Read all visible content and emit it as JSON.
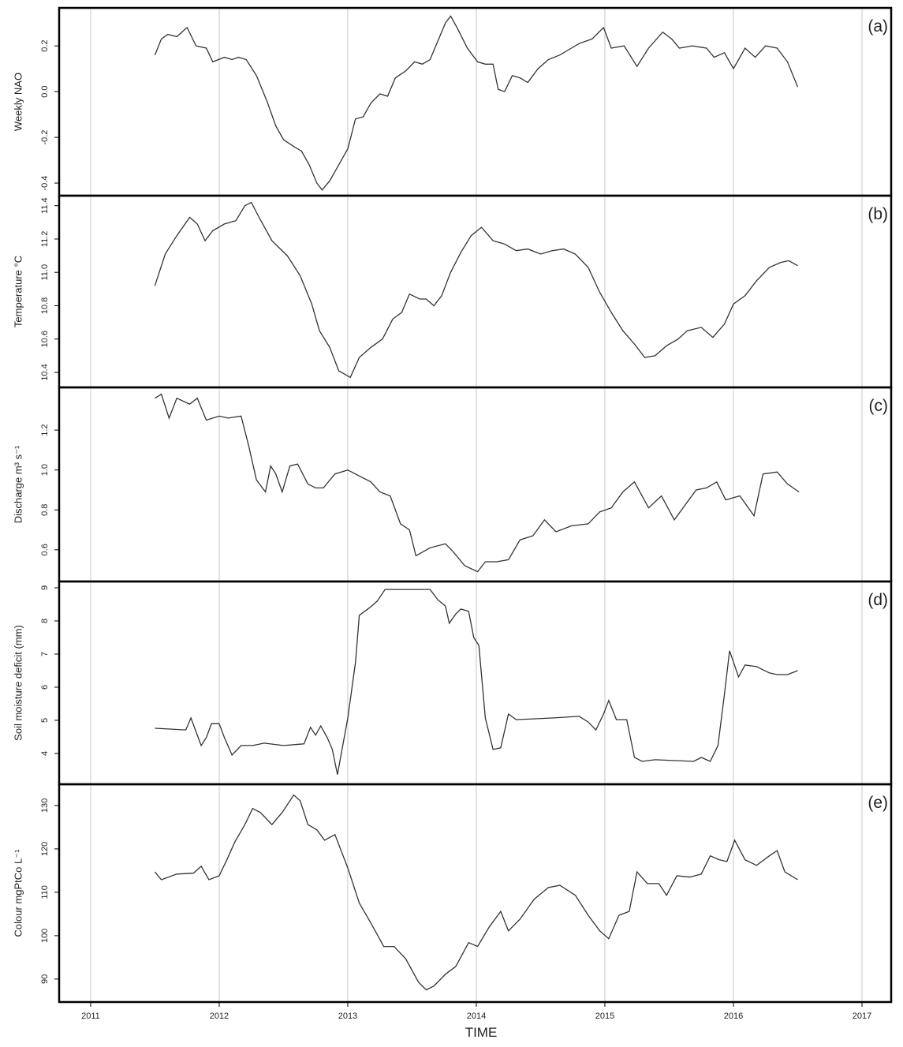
{
  "chart_data": [
    {
      "type": "line",
      "ylabel": "Weekly NAO",
      "annotation": "(a)",
      "color": "#333333",
      "grid": "x",
      "x": [
        2011.5,
        2011.55,
        2011.6,
        2011.67,
        2011.75,
        2011.82,
        2011.9,
        2011.95,
        2012.04,
        2012.1,
        2012.15,
        2012.21,
        2012.29,
        2012.37,
        2012.44,
        2012.5,
        2012.58,
        2012.64,
        2012.7,
        2012.76,
        2012.8,
        2012.86,
        2012.92,
        2013.0,
        2013.06,
        2013.12,
        2013.18,
        2013.25,
        2013.31,
        2013.37,
        2013.45,
        2013.52,
        2013.58,
        2013.64,
        2013.7,
        2013.76,
        2013.8,
        2013.85,
        2013.93,
        2014.01,
        2014.07,
        2014.13,
        2014.17,
        2014.22,
        2014.28,
        2014.34,
        2014.4,
        2014.48,
        2014.56,
        2014.65,
        2014.74,
        2014.8,
        2014.9,
        2014.99,
        2015.05,
        2015.15,
        2015.25,
        2015.34,
        2015.45,
        2015.52,
        2015.58,
        2015.68,
        2015.79,
        2015.85,
        2015.93,
        2016.0,
        2016.09,
        2016.17,
        2016.25,
        2016.34,
        2016.42,
        2016.5
      ],
      "values": [
        0.16,
        0.23,
        0.25,
        0.24,
        0.28,
        0.2,
        0.19,
        0.13,
        0.15,
        0.14,
        0.15,
        0.14,
        0.07,
        -0.04,
        -0.15,
        -0.21,
        -0.24,
        -0.26,
        -0.32,
        -0.4,
        -0.43,
        -0.39,
        -0.33,
        -0.25,
        -0.12,
        -0.11,
        -0.05,
        -0.01,
        -0.02,
        0.06,
        0.09,
        0.13,
        0.12,
        0.14,
        0.22,
        0.3,
        0.33,
        0.28,
        0.19,
        0.13,
        0.12,
        0.12,
        0.01,
        0.0,
        0.07,
        0.06,
        0.04,
        0.1,
        0.14,
        0.16,
        0.19,
        0.21,
        0.23,
        0.28,
        0.19,
        0.2,
        0.11,
        0.19,
        0.26,
        0.23,
        0.19,
        0.2,
        0.19,
        0.15,
        0.17,
        0.1,
        0.19,
        0.15,
        0.2,
        0.19,
        0.13,
        0.02
      ],
      "ylim": [
        -0.455,
        0.366
      ],
      "yticks": [
        -0.4,
        -0.2,
        {
          "value": 0,
          "label": "0.0"
        },
        0.2
      ]
    },
    {
      "type": "line",
      "ylabel": "Temperature °C",
      "annotation": "(b)",
      "color": "#333333",
      "grid": "x",
      "x": [
        2011.5,
        2011.58,
        2011.67,
        2011.77,
        2011.83,
        2011.89,
        2011.95,
        2012.04,
        2012.13,
        2012.2,
        2012.25,
        2012.31,
        2012.41,
        2012.53,
        2012.63,
        2012.72,
        2012.78,
        2012.86,
        2012.93,
        2013.02,
        2013.09,
        2013.18,
        2013.27,
        2013.35,
        2013.42,
        2013.48,
        2013.56,
        2013.61,
        2013.67,
        2013.73,
        2013.8,
        2013.88,
        2013.96,
        2014.04,
        2014.13,
        2014.22,
        2014.31,
        2014.4,
        2014.5,
        2014.59,
        2014.68,
        2014.77,
        2014.87,
        2014.96,
        2015.05,
        2015.14,
        2015.23,
        2015.31,
        2015.39,
        2015.48,
        2015.57,
        2015.64,
        2015.75,
        2015.84,
        2015.93,
        2016.0,
        2016.09,
        2016.18,
        2016.28,
        2016.37,
        2016.43,
        2016.5
      ],
      "values": [
        10.92,
        11.11,
        11.22,
        11.33,
        11.29,
        11.19,
        11.25,
        11.29,
        11.31,
        11.4,
        11.42,
        11.33,
        11.19,
        11.1,
        10.98,
        10.81,
        10.65,
        10.55,
        10.41,
        10.37,
        10.49,
        10.55,
        10.6,
        10.72,
        10.76,
        10.87,
        10.84,
        10.84,
        10.8,
        10.86,
        11.0,
        11.12,
        11.22,
        11.27,
        11.19,
        11.17,
        11.13,
        11.14,
        11.11,
        11.13,
        11.14,
        11.11,
        11.03,
        10.88,
        10.76,
        10.65,
        10.57,
        10.49,
        10.5,
        10.56,
        10.6,
        10.65,
        10.67,
        10.61,
        10.69,
        10.81,
        10.86,
        10.95,
        11.03,
        11.06,
        11.07,
        11.04
      ],
      "ylim": [
        10.31,
        11.46
      ],
      "yticks": [
        10.4,
        10.6,
        10.8,
        {
          "value": 11,
          "label": "11.0"
        },
        11.2,
        11.4
      ]
    },
    {
      "type": "line",
      "ylabel": "Discharge m³ s⁻¹",
      "annotation": "(c)",
      "color": "#333333",
      "grid": "x",
      "x": [
        2011.5,
        2011.55,
        2011.61,
        2011.67,
        2011.77,
        2011.83,
        2011.9,
        2012.0,
        2012.07,
        2012.17,
        2012.23,
        2012.29,
        2012.36,
        2012.4,
        2012.44,
        2012.49,
        2012.55,
        2012.61,
        2012.69,
        2012.75,
        2012.81,
        2012.9,
        2013.0,
        2013.09,
        2013.18,
        2013.25,
        2013.33,
        2013.41,
        2013.48,
        2013.53,
        2013.64,
        2013.76,
        2013.82,
        2013.91,
        2014.01,
        2014.07,
        2014.16,
        2014.25,
        2014.34,
        2014.44,
        2014.53,
        2014.62,
        2014.74,
        2014.87,
        2014.96,
        2015.05,
        2015.14,
        2015.23,
        2015.34,
        2015.44,
        2015.54,
        2015.63,
        2015.71,
        2015.79,
        2015.87,
        2015.94,
        2016.05,
        2016.16,
        2016.23,
        2016.34,
        2016.42,
        2016.51
      ],
      "values": [
        1.36,
        1.38,
        1.26,
        1.36,
        1.33,
        1.36,
        1.25,
        1.27,
        1.26,
        1.27,
        1.12,
        0.95,
        0.89,
        1.02,
        0.98,
        0.89,
        1.02,
        1.03,
        0.93,
        0.91,
        0.91,
        0.98,
        1.0,
        0.97,
        0.94,
        0.89,
        0.87,
        0.73,
        0.7,
        0.57,
        0.61,
        0.63,
        0.59,
        0.52,
        0.49,
        0.54,
        0.54,
        0.55,
        0.65,
        0.67,
        0.75,
        0.69,
        0.72,
        0.73,
        0.79,
        0.81,
        0.89,
        0.94,
        0.81,
        0.87,
        0.75,
        0.83,
        0.9,
        0.91,
        0.94,
        0.85,
        0.87,
        0.77,
        0.98,
        0.99,
        0.93,
        0.89
      ],
      "ylim": [
        0.441,
        1.414
      ],
      "yticks": [
        0.6,
        0.8,
        {
          "value": 1,
          "label": "1.0"
        },
        1.2
      ]
    },
    {
      "type": "line",
      "ylabel": "Soil moisture deficit (mm)",
      "annotation": "(d)",
      "color": "#333333",
      "grid": "x",
      "x": [
        2011.5,
        2011.74,
        2011.78,
        2011.86,
        2011.9,
        2011.94,
        2012.0,
        2012.04,
        2012.1,
        2012.17,
        2012.26,
        2012.35,
        2012.5,
        2012.66,
        2012.71,
        2012.75,
        2012.79,
        2012.84,
        2012.88,
        2012.92,
        2013.0,
        2013.06,
        2013.09,
        2013.17,
        2013.23,
        2013.29,
        2013.64,
        2013.7,
        2013.76,
        2013.79,
        2013.84,
        2013.88,
        2013.94,
        2013.98,
        2014.02,
        2014.07,
        2014.13,
        2014.19,
        2014.25,
        2014.31,
        2014.59,
        2014.8,
        2014.87,
        2014.93,
        2014.99,
        2015.03,
        2015.09,
        2015.17,
        2015.23,
        2015.29,
        2015.39,
        2015.69,
        2015.75,
        2015.82,
        2015.88,
        2015.93,
        2015.97,
        2016.04,
        2016.09,
        2016.18,
        2016.28,
        2016.34,
        2016.42,
        2016.5
      ],
      "values": [
        4.76,
        4.71,
        5.07,
        4.24,
        4.48,
        4.9,
        4.9,
        4.48,
        3.95,
        4.24,
        4.24,
        4.31,
        4.24,
        4.29,
        4.79,
        4.55,
        4.83,
        4.48,
        4.12,
        3.36,
        5.07,
        6.74,
        8.17,
        8.4,
        8.6,
        8.95,
        8.95,
        8.64,
        8.45,
        7.93,
        8.21,
        8.36,
        8.29,
        7.5,
        7.26,
        5.07,
        4.12,
        4.17,
        5.19,
        5.02,
        5.07,
        5.12,
        4.95,
        4.71,
        5.19,
        5.6,
        5.02,
        5.02,
        3.88,
        3.76,
        3.81,
        3.76,
        3.88,
        3.76,
        4.24,
        5.79,
        7.1,
        6.31,
        6.67,
        6.62,
        6.43,
        6.38,
        6.38,
        6.5
      ],
      "ylim": [
        3.07,
        9.19
      ],
      "yticks": [
        4,
        5,
        6,
        7,
        8,
        9
      ]
    },
    {
      "type": "line",
      "ylabel": "Colour mgPtCo L⁻¹",
      "annotation": "(e)",
      "color": "#333333",
      "grid": "x",
      "xlabel": "TIME",
      "x": [
        2011.5,
        2011.55,
        2011.67,
        2011.8,
        2011.86,
        2011.92,
        2012.0,
        2012.06,
        2012.12,
        2012.2,
        2012.26,
        2012.32,
        2012.41,
        2012.49,
        2012.58,
        2012.63,
        2012.69,
        2012.76,
        2012.82,
        2012.9,
        2013.0,
        2013.09,
        2013.18,
        2013.28,
        2013.36,
        2013.45,
        2013.55,
        2013.61,
        2013.67,
        2013.76,
        2013.84,
        2013.94,
        2014.01,
        2014.1,
        2014.19,
        2014.25,
        2014.34,
        2014.45,
        2014.56,
        2014.65,
        2014.77,
        2014.87,
        2014.96,
        2015.03,
        2015.11,
        2015.19,
        2015.25,
        2015.33,
        2015.42,
        2015.48,
        2015.56,
        2015.66,
        2015.75,
        2015.82,
        2015.89,
        2015.95,
        2016.01,
        2016.09,
        2016.18,
        2016.28,
        2016.34,
        2016.4,
        2016.5
      ],
      "values": [
        114.7,
        112.9,
        114.2,
        114.4,
        116.0,
        112.9,
        113.8,
        117.5,
        121.5,
        125.6,
        129.3,
        128.4,
        125.6,
        128.4,
        132.4,
        131.1,
        125.6,
        124.4,
        122.0,
        123.3,
        115.6,
        107.5,
        102.9,
        97.5,
        97.5,
        94.7,
        89.3,
        87.5,
        88.4,
        91.1,
        92.9,
        98.4,
        97.5,
        102.0,
        105.6,
        101.1,
        103.8,
        108.4,
        111.1,
        111.6,
        109.3,
        104.7,
        101.1,
        99.3,
        104.7,
        105.6,
        114.7,
        112.0,
        112.0,
        109.3,
        113.8,
        113.5,
        114.2,
        118.4,
        117.5,
        117.1,
        122.0,
        117.5,
        116.2,
        118.4,
        119.6,
        114.7,
        112.9
      ],
      "ylim": [
        84.7,
        134.9
      ],
      "yticks": [
        90,
        100,
        110,
        120,
        130
      ],
      "xlim": [
        2010.755,
        2017.227
      ],
      "xticks": [
        2011,
        2012,
        2013,
        2014,
        2015,
        2016,
        2017
      ]
    }
  ]
}
